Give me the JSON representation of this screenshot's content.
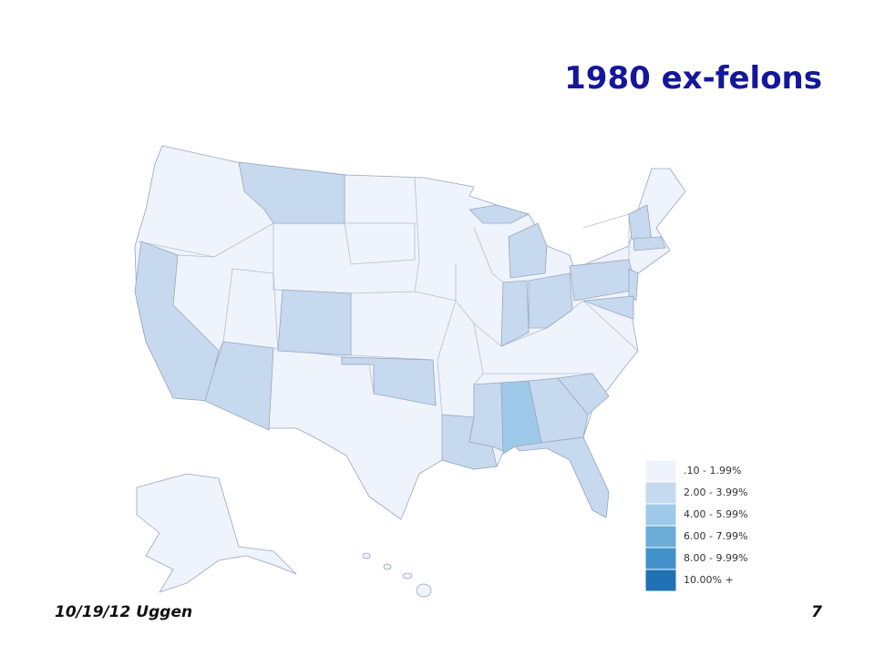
{
  "title": "1980 ex-felons",
  "legend": [
    {
      "label": ".10 - 1.99%",
      "color": "#eef3fc"
    },
    {
      "label": "2.00 - 3.99%",
      "color": "#c6d9ef"
    },
    {
      "label": "4.00 - 5.99%",
      "color": "#9fc9e8"
    },
    {
      "label": "6.00 - 7.99%",
      "color": "#6aaed8"
    },
    {
      "label": "8.00 - 9.99%",
      "color": "#4291cb"
    },
    {
      "label": "10.00% +",
      "color": "#2171b5"
    }
  ],
  "footer": {
    "left": "10/19/12 Uggen",
    "right": "7"
  }
}
